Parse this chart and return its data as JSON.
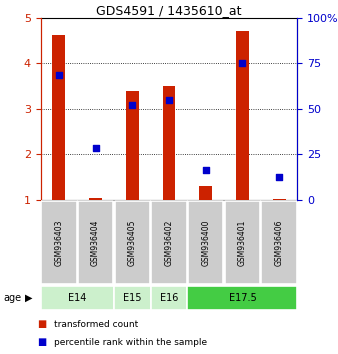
{
  "title": "GDS4591 / 1435610_at",
  "samples": [
    "GSM936403",
    "GSM936404",
    "GSM936405",
    "GSM936402",
    "GSM936400",
    "GSM936401",
    "GSM936406"
  ],
  "red_bar_heights": [
    4.62,
    1.05,
    3.4,
    3.5,
    1.3,
    4.7,
    1.02
  ],
  "blue_square_y": [
    3.75,
    2.15,
    3.08,
    3.2,
    1.65,
    4.0,
    1.5
  ],
  "ylim": [
    1,
    5
  ],
  "yticks_left": [
    1,
    2,
    3,
    4,
    5
  ],
  "yticks_right": [
    0,
    25,
    50,
    75,
    100
  ],
  "ylabel_left_color": "#cc2200",
  "ylabel_right_color": "#0000cc",
  "bar_color": "#cc2200",
  "square_color": "#0000cc",
  "bar_width": 0.35,
  "square_size": 18,
  "age_groups": [
    {
      "label": "E14",
      "start": 0,
      "end": 2,
      "color": "#ccf0cc"
    },
    {
      "label": "E15",
      "start": 2,
      "end": 3,
      "color": "#ccf0cc"
    },
    {
      "label": "E16",
      "start": 3,
      "end": 4,
      "color": "#ccf0cc"
    },
    {
      "label": "E17.5",
      "start": 4,
      "end": 7,
      "color": "#44cc44"
    }
  ],
  "legend_red_label": "transformed count",
  "legend_blue_label": "percentile rank within the sample",
  "age_label": "age",
  "plot_bg_color": "#ffffff",
  "sample_bg_color": "#cccccc",
  "fig_bg_color": "#ffffff"
}
